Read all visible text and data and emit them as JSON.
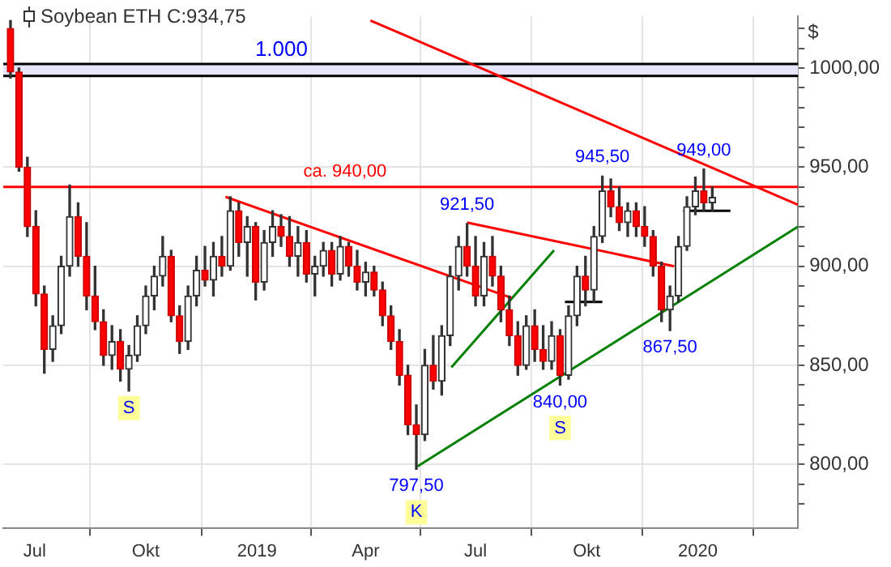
{
  "chart_data": {
    "type": "candlestick",
    "title": "Soybean ETH C:934,75",
    "ylabel": "$",
    "x": [
      "2018-06-11",
      "2018-06-18",
      "2018-06-25",
      "2018-07-02",
      "2018-07-09",
      "2018-07-16",
      "2018-07-23",
      "2018-07-30",
      "2018-08-06",
      "2018-08-13",
      "2018-08-20",
      "2018-08-27",
      "2018-09-03",
      "2018-09-10",
      "2018-09-17",
      "2018-09-24",
      "2018-10-01",
      "2018-10-08",
      "2018-10-15",
      "2018-10-22",
      "2018-10-29",
      "2018-11-05",
      "2018-11-12",
      "2018-11-19",
      "2018-11-26",
      "2018-12-03",
      "2018-12-10",
      "2018-12-17",
      "2018-12-24",
      "2018-12-31",
      "2019-01-07",
      "2019-01-14",
      "2019-01-21",
      "2019-01-28",
      "2019-02-04",
      "2019-02-11",
      "2019-02-18",
      "2019-02-25",
      "2019-03-04",
      "2019-03-11",
      "2019-03-18",
      "2019-03-25",
      "2019-04-01",
      "2019-04-08",
      "2019-04-15",
      "2019-04-22",
      "2019-04-29",
      "2019-05-06",
      "2019-05-13",
      "2019-05-20",
      "2019-05-27",
      "2019-06-03",
      "2019-06-10",
      "2019-06-17",
      "2019-06-24",
      "2019-07-01",
      "2019-07-08",
      "2019-07-15",
      "2019-07-22",
      "2019-07-29",
      "2019-08-05",
      "2019-08-12",
      "2019-08-19",
      "2019-08-26",
      "2019-09-02",
      "2019-09-09",
      "2019-09-16",
      "2019-09-23",
      "2019-09-30",
      "2019-10-07",
      "2019-10-14",
      "2019-10-21",
      "2019-10-28",
      "2019-11-04",
      "2019-11-11",
      "2019-11-18",
      "2019-11-25",
      "2019-12-02",
      "2019-12-09",
      "2019-12-16",
      "2019-12-23",
      "2019-12-30",
      "2020-01-06",
      "2020-01-13"
    ],
    "ohlc": [
      [
        1020,
        1024,
        995,
        998
      ],
      [
        998,
        1000,
        948,
        950
      ],
      [
        950,
        955,
        915,
        920
      ],
      [
        920,
        928,
        880,
        886
      ],
      [
        886,
        890,
        846,
        858
      ],
      [
        858,
        875,
        852,
        870
      ],
      [
        870,
        905,
        866,
        900
      ],
      [
        900,
        941,
        895,
        925
      ],
      [
        925,
        932,
        900,
        905
      ],
      [
        905,
        922,
        878,
        885
      ],
      [
        885,
        900,
        868,
        872
      ],
      [
        872,
        878,
        850,
        855
      ],
      [
        855,
        870,
        848,
        862
      ],
      [
        862,
        868,
        842,
        848
      ],
      [
        848,
        860,
        837,
        855
      ],
      [
        855,
        875,
        852,
        870
      ],
      [
        870,
        890,
        866,
        885
      ],
      [
        885,
        900,
        878,
        895
      ],
      [
        895,
        915,
        890,
        905
      ],
      [
        905,
        908,
        872,
        875
      ],
      [
        875,
        880,
        856,
        862
      ],
      [
        862,
        890,
        858,
        885
      ],
      [
        885,
        905,
        880,
        898
      ],
      [
        898,
        910,
        890,
        893
      ],
      [
        893,
        912,
        885,
        905
      ],
      [
        905,
        915,
        895,
        900
      ],
      [
        900,
        935,
        898,
        928
      ],
      [
        928,
        932,
        905,
        912
      ],
      [
        912,
        925,
        895,
        920
      ],
      [
        920,
        922,
        883,
        892
      ],
      [
        892,
        918,
        888,
        912
      ],
      [
        912,
        928,
        905,
        920
      ],
      [
        920,
        926,
        910,
        915
      ],
      [
        915,
        925,
        900,
        905
      ],
      [
        905,
        920,
        895,
        912
      ],
      [
        912,
        918,
        892,
        896
      ],
      [
        896,
        905,
        885,
        900
      ],
      [
        900,
        912,
        895,
        908
      ],
      [
        908,
        912,
        890,
        896
      ],
      [
        896,
        915,
        893,
        910
      ],
      [
        910,
        912,
        895,
        900
      ],
      [
        900,
        908,
        888,
        892
      ],
      [
        892,
        902,
        885,
        897
      ],
      [
        897,
        900,
        885,
        888
      ],
      [
        888,
        892,
        870,
        875
      ],
      [
        875,
        880,
        858,
        862
      ],
      [
        862,
        868,
        840,
        845
      ],
      [
        845,
        850,
        815,
        820
      ],
      [
        820,
        830,
        797.5,
        815
      ],
      [
        815,
        858,
        812,
        850
      ],
      [
        850,
        865,
        838,
        842
      ],
      [
        842,
        870,
        835,
        865
      ],
      [
        865,
        900,
        860,
        895
      ],
      [
        895,
        915,
        888,
        910
      ],
      [
        910,
        921.5,
        895,
        900
      ],
      [
        900,
        915,
        880,
        885
      ],
      [
        885,
        912,
        880,
        905
      ],
      [
        905,
        915,
        890,
        895
      ],
      [
        895,
        900,
        872,
        878
      ],
      [
        878,
        885,
        860,
        865
      ],
      [
        865,
        872,
        845,
        850
      ],
      [
        850,
        875,
        848,
        870
      ],
      [
        870,
        878,
        852,
        858
      ],
      [
        858,
        870,
        848,
        852
      ],
      [
        852,
        872,
        848,
        865
      ],
      [
        865,
        868,
        840,
        845
      ],
      [
        845,
        880,
        843,
        875
      ],
      [
        875,
        900,
        870,
        895
      ],
      [
        895,
        905,
        880,
        888
      ],
      [
        888,
        920,
        882,
        915
      ],
      [
        915,
        945.5,
        912,
        938
      ],
      [
        938,
        944,
        925,
        930
      ],
      [
        930,
        940,
        918,
        922
      ],
      [
        922,
        932,
        915,
        928
      ],
      [
        928,
        932,
        915,
        920
      ],
      [
        920,
        930,
        910,
        915
      ],
      [
        915,
        918,
        895,
        900
      ],
      [
        900,
        902,
        872,
        878
      ],
      [
        878,
        890,
        867.5,
        885
      ],
      [
        885,
        915,
        882,
        910
      ],
      [
        910,
        935,
        908,
        930
      ],
      [
        930,
        945,
        926,
        938
      ],
      [
        938,
        949,
        928,
        932
      ],
      [
        932,
        940,
        928,
        934.75
      ]
    ],
    "series": [
      {
        "type": "line",
        "color": "#ff0000",
        "x": [
          "2019-04-05",
          "2020-03-24"
        ],
        "values": [
          1024,
          931
        ]
      },
      {
        "type": "line",
        "color": "#ff0000",
        "x": [
          "2018-12-06",
          "2019-07-31"
        ],
        "values": [
          935,
          884
        ]
      },
      {
        "type": "line",
        "color": "#ff0000",
        "x": [
          "2019-06-24",
          "2019-12-12T12:00"
        ],
        "values": [
          922,
          900
        ]
      },
      {
        "type": "line",
        "color": "#008000",
        "x": [
          "2019-06-11",
          "2019-09-04"
        ],
        "values": [
          849,
          908
        ]
      },
      {
        "type": "line",
        "color": "#008000",
        "x": [
          "2019-05-14",
          "2020-03-24"
        ],
        "values": [
          799,
          920
        ]
      },
      {
        "type": "line",
        "color": "#000000",
        "x": [
          "2019-09-13",
          "2019-10-14"
        ],
        "values": [
          882,
          882
        ]
      },
      {
        "type": "line",
        "color": "#000000",
        "x": [
          "2019-12-20",
          "2020-01-28"
        ],
        "values": [
          928,
          928
        ]
      }
    ],
    "xlim": [
      "2018-06-05",
      "2020-03-24"
    ],
    "xticks": [
      {
        "value": "2018-07-01",
        "label": "Jul"
      },
      {
        "value": "2018-10-01",
        "label": "Okt"
      },
      {
        "value": "2019-01-01",
        "label": "2019"
      },
      {
        "value": "2019-04-01",
        "label": "Apr"
      },
      {
        "value": "2019-07-01",
        "label": "Jul"
      },
      {
        "value": "2019-10-01",
        "label": "Okt"
      },
      {
        "value": "2020-01-01",
        "label": "2020"
      }
    ],
    "ylim": [
      768,
      1026
    ],
    "yticks": [
      {
        "value": 780,
        "label": null
      },
      {
        "value": 790,
        "label": null
      },
      {
        "value": 800,
        "label": "800,00"
      },
      {
        "value": 810,
        "label": null
      },
      {
        "value": 820,
        "label": null
      },
      {
        "value": 830,
        "label": null
      },
      {
        "value": 840,
        "label": null
      },
      {
        "value": 850,
        "label": "850,00"
      },
      {
        "value": 860,
        "label": null
      },
      {
        "value": 870,
        "label": null
      },
      {
        "value": 880,
        "label": null
      },
      {
        "value": 890,
        "label": null
      },
      {
        "value": 900,
        "label": "900,00"
      },
      {
        "value": 910,
        "label": null
      },
      {
        "value": 920,
        "label": null
      },
      {
        "value": 930,
        "label": null
      },
      {
        "value": 940,
        "label": null
      },
      {
        "value": 950,
        "label": "950,00"
      },
      {
        "value": 960,
        "label": null
      },
      {
        "value": 970,
        "label": null
      },
      {
        "value": 980,
        "label": null
      },
      {
        "value": 990,
        "label": null
      },
      {
        "value": 1000,
        "label": "1000,00"
      },
      {
        "value": 1010,
        "label": null
      },
      {
        "value": 1020,
        "label": null
      }
    ],
    "grid": true,
    "bands": [
      {
        "axis": "y",
        "from": 996,
        "to": 1002,
        "label": "1.000",
        "color": "#e6e6fa"
      }
    ],
    "ref_lines": [
      {
        "axis": "y",
        "value": 940,
        "label": "ca. 940,00",
        "color": "#ff0000"
      },
      {
        "axis": "y",
        "value": 996,
        "color": "#000000"
      },
      {
        "axis": "y",
        "value": 1002,
        "color": "#000000"
      }
    ],
    "annotations": [
      {
        "text": "945,50",
        "x": "2019-10-14",
        "y": 945.5
      },
      {
        "text": "949,00",
        "x": "2020-01-06",
        "y": 949
      },
      {
        "text": "921,50",
        "x": "2019-06-24",
        "y": 921.5
      },
      {
        "text": "867,50",
        "x": "2019-12-09",
        "y": 867.5
      },
      {
        "text": "840,00",
        "x": "2019-09-09",
        "y": 840
      },
      {
        "text": "S",
        "x": "2019-09-09",
        "y": 840
      },
      {
        "text": "797,50",
        "x": "2019-05-13",
        "y": 797.5
      },
      {
        "text": "K",
        "x": "2019-05-13",
        "y": 797.5
      },
      {
        "text": "S",
        "x": "2018-09-17",
        "y": 837
      }
    ]
  }
}
